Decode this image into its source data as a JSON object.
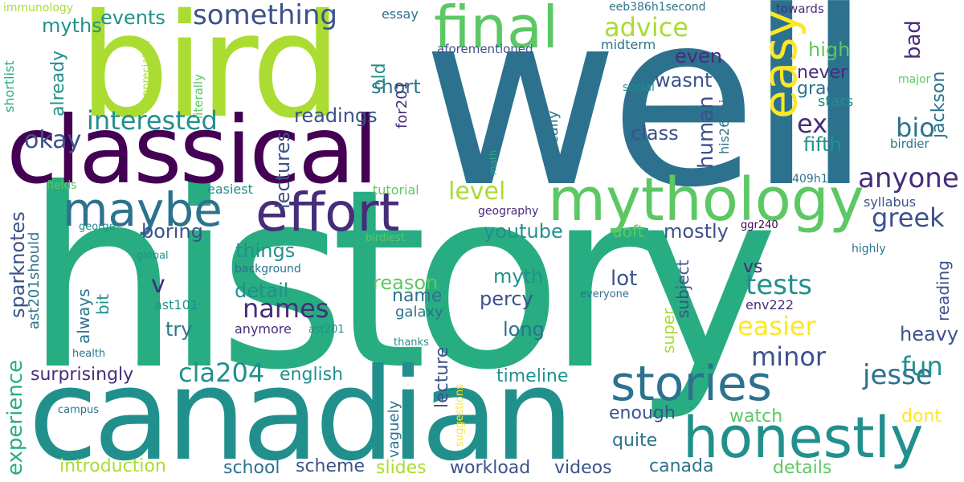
{
  "palette": {
    "c1": "#440154",
    "c2": "#472c7a",
    "c3": "#3b528b",
    "c4": "#2c728e",
    "c5": "#21908d",
    "c6": "#27ad81",
    "c7": "#5cc863",
    "c8": "#aadc32",
    "c9": "#fde725"
  },
  "words": {
    "well": "well",
    "history": "history",
    "canadian": "canadian",
    "bird": "bird",
    "classical": "classical",
    "mythology": "mythology",
    "honestly": "honestly",
    "final": "final",
    "effort": "effort",
    "stories": "stories",
    "maybe": "maybe",
    "easy": "easy",
    "something": "something",
    "interested": "interested",
    "advice": "advice",
    "anyone": "anyone",
    "cla204": "cla204",
    "easier": "easier",
    "tests": "tests",
    "names": "names",
    "minor": "minor",
    "jesse": "jesse",
    "greek": "greek",
    "bio": "bio",
    "ex": "ex",
    "human": "human",
    "okay": "okay",
    "fun": "fun",
    "level": "level",
    "bad": "bad",
    "experience": "experience",
    "events": "events",
    "myths": "myths",
    "short": "short",
    "even": "even",
    "wasnt": "wasnt",
    "high": "high",
    "never": "never",
    "grade": "grade",
    "stars": "stars",
    "fifth": "fifth",
    "class": "class",
    "readings": "readings",
    "lectures": "lectures",
    "already": "already",
    "old": "old",
    "for201": "for201",
    "jackson": "jackson",
    "essay": "essay",
    "midterm": "midterm",
    "aforementioned": "aforementioned",
    "eeb386h1second": "eeb386h1second",
    "towards": "towards",
    "immunology": "immunology",
    "appreciated": "appreciated",
    "literally": "literally",
    "shortlist": "shortlist",
    "social": "social",
    "major": "major",
    "his262hi": "his262hi",
    "birdier": "birdier",
    "basically": "basically",
    "math": "math",
    "eeb409h1": "eeb409h1",
    "syllabus": "syllabus",
    "fields": "fields",
    "easiest": "easiest",
    "tutorial": "tutorial",
    "geography": "geography",
    "ggr240": "ggr240",
    "george": "george",
    "boring": "boring",
    "youtube": "youtube",
    "uoft": "uoft",
    "mostly": "mostly",
    "global": "global",
    "birdiest": "birdiest",
    "highly": "highly",
    "things": "things",
    "background": "background",
    "sparknotes": "sparknotes",
    "ast201should": "ast201should",
    "v": "v",
    "detail": "detail",
    "reason": "reason",
    "myth": "myth",
    "lot": "lot",
    "subject": "subject",
    "vs": "vs",
    "reading": "reading",
    "name": "name",
    "percy": "percy",
    "super": "super",
    "ast101": "ast101",
    "everyone": "everyone",
    "env222": "env222",
    "galaxy": "galaxy",
    "always": "always",
    "bit": "bit",
    "try": "try",
    "anymore": "anymore",
    "ast201": "ast201",
    "long": "long",
    "heavy": "heavy",
    "health": "health",
    "thanks": "thanks",
    "surprisingly": "surprisingly",
    "english": "english",
    "timeline": "timeline",
    "lecture": "lecture",
    "suggestions": "suggestions",
    "enough": "enough",
    "watch": "watch",
    "dont": "dont",
    "vaguely": "vaguely",
    "campus": "campus",
    "quite": "quite",
    "introduction": "introduction",
    "school": "school",
    "scheme": "scheme",
    "slides": "slides",
    "workload": "workload",
    "videos": "videos",
    "canada": "canada",
    "details": "details"
  }
}
